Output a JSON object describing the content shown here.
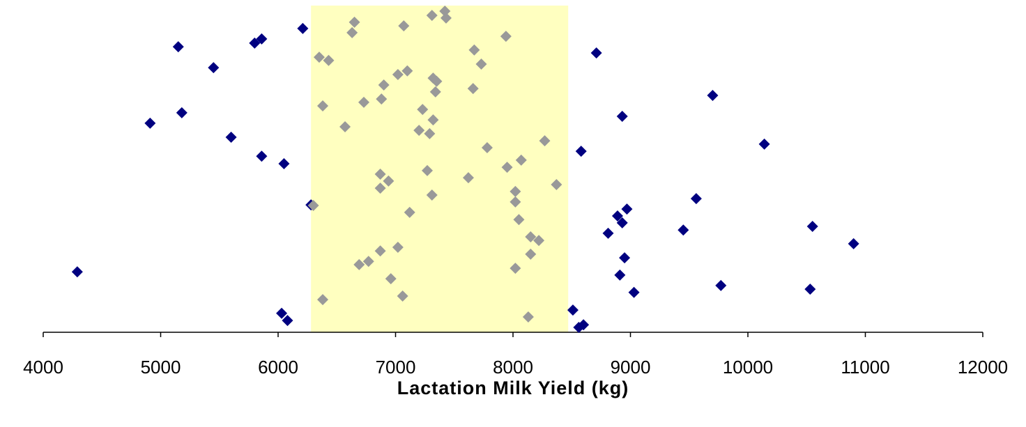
{
  "chart_data": {
    "type": "scatter",
    "x_label": "Lactation Milk Yield (kg)",
    "xlim": [
      4000,
      12000
    ],
    "xticks": [
      4000,
      5000,
      6000,
      7000,
      8000,
      9000,
      10000,
      11000,
      12000
    ],
    "ylim": [
      0,
      100
    ],
    "highlight": [
      6280,
      8470
    ],
    "highlight_color": "#ffffc0",
    "series": [
      {
        "color": "#000080",
        "x": [
          4290,
          4910,
          5150,
          5180,
          5450,
          5600,
          5800,
          5860,
          5860,
          6050,
          6210,
          6030,
          6080,
          6280,
          8710,
          9700,
          8930,
          10140,
          8580,
          9560,
          8970,
          8890,
          8930,
          9450,
          10550,
          8810,
          10900,
          8950,
          8910,
          9770,
          9030,
          10530,
          8510,
          8560,
          8600
        ],
        "y": [
          18.5,
          64,
          87.4,
          67.2,
          81,
          59.7,
          88.5,
          89.8,
          53.9,
          51.6,
          93,
          5.8,
          3.6,
          39,
          85.5,
          72.5,
          66.1,
          57.6,
          55.4,
          40.9,
          37.7,
          35.6,
          33.5,
          31.3,
          32.4,
          30.3,
          27.1,
          22.8,
          17.5,
          14.3,
          12.2,
          13.2,
          6.8,
          1.5,
          2.3
        ]
      },
      {
        "color": "#999999",
        "x": [
          6650,
          6630,
          7070,
          7310,
          7420,
          7430,
          7940,
          6350,
          6430,
          7670,
          7730,
          7100,
          7020,
          7320,
          7350,
          6900,
          7660,
          7340,
          6880,
          6730,
          6380,
          7230,
          7320,
          6570,
          7200,
          7290,
          8270,
          7780,
          8070,
          7950,
          7270,
          6870,
          6940,
          7620,
          6870,
          8370,
          8020,
          7310,
          6300,
          8020,
          7120,
          8050,
          8150,
          8220,
          7020,
          6870,
          8150,
          6770,
          6690,
          8020,
          6960,
          7060,
          6380,
          8130
        ],
        "y": [
          94.9,
          91.7,
          93.8,
          97,
          98.3,
          96.2,
          90.6,
          84.2,
          83.2,
          86.4,
          82.1,
          80,
          78.9,
          77.8,
          76.8,
          75.7,
          74.6,
          73.6,
          71.4,
          70.4,
          69.3,
          68.2,
          65,
          62.9,
          61.8,
          60.8,
          58.6,
          56.5,
          52.7,
          50.5,
          49.5,
          48.4,
          46.3,
          47.3,
          44.1,
          45.2,
          43.1,
          42,
          38.8,
          39.9,
          36.7,
          34.5,
          29.2,
          28.1,
          26,
          24.9,
          23.9,
          21.7,
          20.7,
          19.6,
          16.4,
          11.1,
          10,
          4.7
        ]
      }
    ]
  }
}
